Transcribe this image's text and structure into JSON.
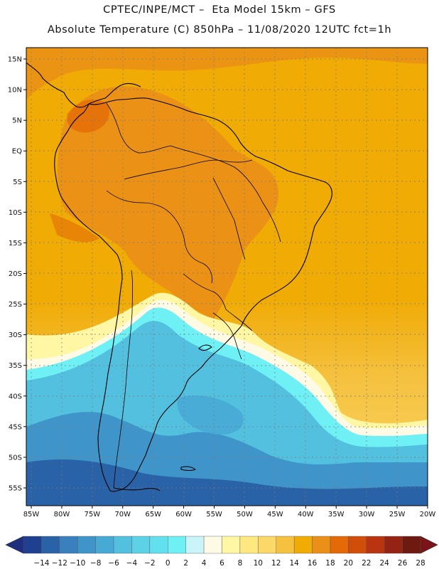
{
  "title": {
    "line1": "CPTEC/INPE/MCT –  Eta Model 15km – GFS",
    "line2": "Absolute Temperature (C) 850hPa – 11/08/2020 12UTC fct=1h"
  },
  "map": {
    "lat_labels": [
      "15N",
      "10N",
      "5N",
      "EQ",
      "5S",
      "10S",
      "15S",
      "20S",
      "25S",
      "30S",
      "35S",
      "40S",
      "45S",
      "50S",
      "55S"
    ],
    "lon_labels": [
      "85W",
      "80W",
      "75W",
      "70W",
      "65W",
      "60W",
      "55W",
      "50W",
      "45W",
      "40W",
      "35W",
      "30W",
      "25W",
      "20W"
    ]
  },
  "colorbar": {
    "labels": [
      "-14",
      "-12",
      "-10",
      "-8",
      "-6",
      "-4",
      "-2",
      "0",
      "2",
      "4",
      "6",
      "8",
      "10",
      "12",
      "14",
      "16",
      "18",
      "20",
      "22",
      "24",
      "26",
      "28"
    ],
    "colors": [
      "#1f3f8f",
      "#2a62a8",
      "#3a80bd",
      "#3f95c9",
      "#47aad5",
      "#52c0de",
      "#5dd1e6",
      "#63e0ee",
      "#6ff0f5",
      "#c8f4fa",
      "#fffae6",
      "#fff7a3",
      "#ffe87f",
      "#fbd868",
      "#f5c13f",
      "#f0ab05",
      "#ea8f17",
      "#e36a06",
      "#d14d0a",
      "#b83510",
      "#952313",
      "#6e1a10"
    ],
    "under_color": "#1d2f7e",
    "over_color": "#7a1418"
  }
}
